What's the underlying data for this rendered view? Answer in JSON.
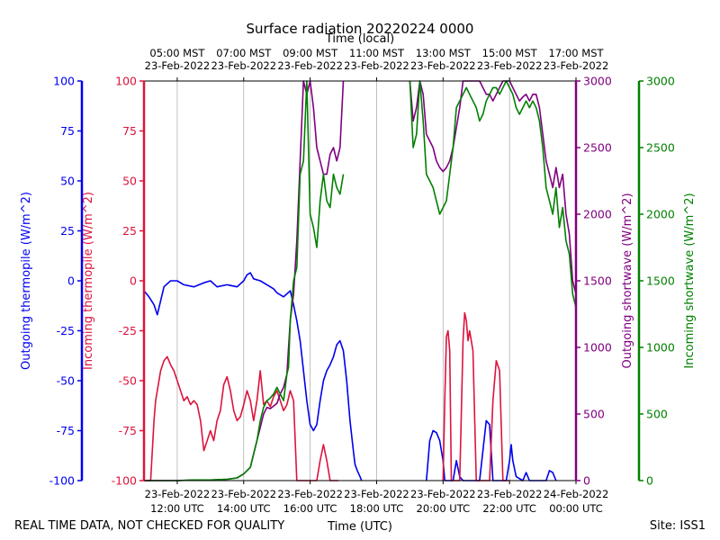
{
  "chart_data": {
    "type": "line",
    "title": "Surface radiation 20220224 0000",
    "xlabel_bottom": "Time (UTC)",
    "xlabel_top": "Time (local)",
    "footer_left": "REAL TIME DATA, NOT CHECKED FOR QUALITY",
    "footer_right": "Site: ISS1",
    "xlim_hours_utc": [
      11,
      24
    ],
    "grid": "vertical",
    "x_ticks_bottom": [
      {
        "hour": 12,
        "date": "23-Feb-2022",
        "time": "12:00 UTC"
      },
      {
        "hour": 14,
        "date": "23-Feb-2022",
        "time": "14:00 UTC"
      },
      {
        "hour": 16,
        "date": "23-Feb-2022",
        "time": "16:00 UTC"
      },
      {
        "hour": 18,
        "date": "23-Feb-2022",
        "time": "18:00 UTC"
      },
      {
        "hour": 20,
        "date": "23-Feb-2022",
        "time": "20:00 UTC"
      },
      {
        "hour": 22,
        "date": "23-Feb-2022",
        "time": "22:00 UTC"
      },
      {
        "hour": 24,
        "date": "24-Feb-2022",
        "time": "00:00 UTC"
      }
    ],
    "x_ticks_top": [
      {
        "hour": 12,
        "time": "05:00 MST",
        "date": "23-Feb-2022"
      },
      {
        "hour": 14,
        "time": "07:00 MST",
        "date": "23-Feb-2022"
      },
      {
        "hour": 16,
        "time": "09:00 MST",
        "date": "23-Feb-2022"
      },
      {
        "hour": 18,
        "time": "11:00 MST",
        "date": "23-Feb-2022"
      },
      {
        "hour": 20,
        "time": "13:00 MST",
        "date": "23-Feb-2022"
      },
      {
        "hour": 22,
        "time": "15:00 MST",
        "date": "23-Feb-2022"
      },
      {
        "hour": 24,
        "time": "17:00 MST",
        "date": "23-Feb-2022"
      }
    ],
    "axes": [
      {
        "id": "out_thermo",
        "label": "Outgoing thermopile (W/m^2)",
        "color": "#0000ee",
        "ylim": [
          -100,
          100
        ],
        "ticks": [
          -100,
          -75,
          -50,
          -25,
          0,
          25,
          50,
          75,
          100
        ]
      },
      {
        "id": "in_thermo",
        "label": "Incoming thermopile (W/m^2)",
        "color": "#dc143c",
        "ylim": [
          -100,
          100
        ],
        "ticks": [
          -100,
          -75,
          -50,
          -25,
          0,
          25,
          50,
          75,
          100
        ]
      },
      {
        "id": "out_sw",
        "label": "Outgoing shortwave (W/m^2)",
        "color": "#800080",
        "ylim": [
          0,
          3000
        ],
        "ticks": [
          0,
          500,
          1000,
          1500,
          2000,
          2500,
          3000
        ]
      },
      {
        "id": "in_sw",
        "label": "Incoming shortwave (W/m^2)",
        "color": "#008000",
        "ylim": [
          0,
          3000
        ],
        "ticks": [
          0,
          500,
          1000,
          1500,
          2000,
          2500,
          3000
        ]
      }
    ],
    "series": [
      {
        "id": "outgoing-thermopile",
        "axis": "out_thermo",
        "color": "#0000ee",
        "x": [
          11.0,
          11.15,
          11.3,
          11.4,
          11.5,
          11.6,
          11.8,
          12.0,
          12.2,
          12.5,
          12.8,
          13.0,
          13.2,
          13.5,
          13.8,
          14.0,
          14.1,
          14.2,
          14.3,
          14.5,
          14.7,
          14.9,
          15.0,
          15.2,
          15.4,
          15.5,
          15.6,
          15.7,
          15.8,
          15.9,
          16.0,
          16.1,
          16.2,
          16.3,
          16.4,
          16.5,
          16.6,
          16.7,
          16.8,
          16.9,
          17.0,
          17.1,
          17.2,
          17.3,
          17.35,
          17.42,
          17.5,
          17.55
        ],
        "y": [
          -5,
          -8,
          -12,
          -17,
          -10,
          -3,
          0,
          0,
          -2,
          -3,
          -1,
          0,
          -3,
          -2,
          -3,
          0,
          3,
          4,
          1,
          0,
          -2,
          -4,
          -6,
          -8,
          -5,
          -12,
          -20,
          -30,
          -45,
          -60,
          -72,
          -75,
          -72,
          -60,
          -50,
          -45,
          -42,
          -38,
          -32,
          -30,
          -35,
          -50,
          -70,
          -85,
          -92,
          -95,
          -98,
          -100
        ]
      },
      {
        "id": "outgoing-thermopile-afternoon",
        "axis": "out_thermo",
        "color": "#0000ee",
        "x": [
          19.5,
          19.6,
          19.7,
          19.8,
          19.9,
          20.0,
          20.05,
          20.3,
          20.4,
          20.5,
          20.6,
          21.1,
          21.2,
          21.3,
          21.4,
          21.5,
          21.7,
          21.9,
          22.0,
          22.05,
          22.1,
          22.2,
          22.4,
          22.5,
          22.6,
          23.1,
          23.2,
          23.3,
          23.4
        ],
        "y": [
          -100,
          -80,
          -75,
          -76,
          -80,
          -90,
          -100,
          -100,
          -90,
          -98,
          -100,
          -100,
          -85,
          -70,
          -72,
          -100,
          -100,
          -100,
          -90,
          -82,
          -90,
          -98,
          -100,
          -96,
          -100,
          -100,
          -95,
          -96,
          -100
        ]
      },
      {
        "id": "incoming-thermopile",
        "axis": "in_thermo",
        "color": "#dc143c",
        "x": [
          11.0,
          11.2,
          11.3,
          11.35,
          11.5,
          11.6,
          11.7,
          11.8,
          11.9,
          12.0,
          12.1,
          12.2,
          12.3,
          12.4,
          12.5,
          12.6,
          12.7,
          12.8,
          12.9,
          13.0,
          13.1,
          13.2,
          13.3,
          13.4,
          13.5,
          13.6,
          13.7,
          13.8,
          13.9,
          14.0,
          14.1,
          14.2,
          14.3,
          14.4,
          14.5,
          14.6,
          14.7,
          14.8,
          14.9,
          15.0,
          15.1,
          15.2,
          15.3,
          15.4,
          15.5,
          15.6,
          15.7,
          15.8,
          15.9,
          16.0,
          16.1,
          16.2,
          16.3,
          16.4,
          16.5,
          16.6,
          16.7,
          16.8,
          16.85
        ],
        "y": [
          -100,
          -100,
          -70,
          -60,
          -45,
          -40,
          -38,
          -42,
          -45,
          -50,
          -55,
          -60,
          -58,
          -62,
          -60,
          -62,
          -70,
          -85,
          -80,
          -75,
          -80,
          -70,
          -65,
          -52,
          -48,
          -55,
          -65,
          -70,
          -68,
          -62,
          -55,
          -60,
          -70,
          -60,
          -45,
          -62,
          -60,
          -63,
          -58,
          -55,
          -60,
          -65,
          -62,
          -55,
          -60,
          -100,
          -100,
          -100,
          -100,
          -100,
          -100,
          -100,
          -90,
          -82,
          -90,
          -100,
          -100,
          -100,
          -100
        ]
      },
      {
        "id": "incoming-thermopile-afternoon",
        "axis": "in_thermo",
        "color": "#dc143c",
        "x": [
          20.0,
          20.05,
          20.1,
          20.15,
          20.2,
          20.25,
          20.3,
          20.4,
          20.5,
          20.6,
          20.65,
          20.7,
          20.75,
          20.8,
          20.9,
          21.0,
          21.1,
          21.2,
          21.3,
          21.4,
          21.5,
          21.6,
          21.7,
          21.8,
          21.9,
          22.0
        ],
        "y": [
          -100,
          -60,
          -28,
          -25,
          -35,
          -100,
          -100,
          -100,
          -100,
          -30,
          -16,
          -20,
          -30,
          -25,
          -35,
          -100,
          -100,
          -100,
          -100,
          -100,
          -60,
          -40,
          -45,
          -100,
          -100,
          -100
        ]
      },
      {
        "id": "outgoing-shortwave",
        "axis": "out_sw",
        "color": "#800080",
        "x": [
          11.0,
          11.5,
          12.0,
          12.5,
          13.0,
          13.5,
          13.8,
          14.0,
          14.2,
          14.3,
          14.4,
          14.5,
          14.6,
          14.7,
          14.8,
          14.9,
          15.0,
          15.1,
          15.2,
          15.3,
          15.35,
          15.4,
          15.5,
          15.6,
          15.7,
          15.8,
          15.9,
          16.0,
          16.1,
          16.2,
          16.3,
          16.4,
          16.5,
          16.6,
          16.7,
          16.8,
          16.9,
          17.0
        ],
        "y": [
          0,
          0,
          0,
          5,
          5,
          10,
          20,
          50,
          100,
          200,
          300,
          400,
          500,
          550,
          540,
          560,
          580,
          650,
          700,
          800,
          1000,
          1200,
          1400,
          1800,
          2400,
          3000,
          2900,
          3000,
          2800,
          2500,
          2400,
          2300,
          2300,
          2450,
          2500,
          2400,
          2500,
          3000
        ]
      },
      {
        "id": "outgoing-shortwave-afternoon",
        "axis": "out_sw",
        "color": "#800080",
        "x": [
          19.0,
          19.1,
          19.2,
          19.3,
          19.4,
          19.5,
          19.6,
          19.7,
          19.8,
          19.9,
          20.0,
          20.1,
          20.2,
          20.3,
          20.4,
          20.5,
          20.6,
          20.7,
          20.8,
          20.9,
          21.0,
          21.1,
          21.2,
          21.3,
          21.4,
          21.5,
          21.6,
          21.7,
          21.8,
          21.9,
          22.0,
          22.1,
          22.2,
          22.3,
          22.4,
          22.5,
          22.6,
          22.7,
          22.8,
          22.9,
          23.0,
          23.1,
          23.2,
          23.3,
          23.4,
          23.5,
          23.6,
          23.7,
          23.8,
          23.9,
          24.0
        ],
        "y": [
          3000,
          2700,
          2800,
          3000,
          2900,
          2600,
          2550,
          2500,
          2400,
          2350,
          2320,
          2350,
          2400,
          2500,
          2650,
          2800,
          3000,
          3000,
          3000,
          3000,
          3000,
          3000,
          2950,
          2900,
          2900,
          2850,
          2900,
          2950,
          3000,
          3000,
          3000,
          2950,
          2900,
          2850,
          2880,
          2900,
          2850,
          2900,
          2900,
          2800,
          2600,
          2400,
          2300,
          2200,
          2350,
          2200,
          2300,
          2000,
          1850,
          1500,
          1400
        ]
      },
      {
        "id": "incoming-shortwave",
        "axis": "in_sw",
        "color": "#008000",
        "x": [
          11.0,
          11.5,
          12.0,
          12.5,
          13.0,
          13.5,
          13.8,
          14.0,
          14.2,
          14.3,
          14.4,
          14.5,
          14.6,
          14.7,
          14.8,
          14.9,
          15.0,
          15.1,
          15.2,
          15.3,
          15.35,
          15.4,
          15.5,
          15.6,
          15.7,
          15.8,
          15.9,
          16.0,
          16.1,
          16.2,
          16.3,
          16.4,
          16.5,
          16.6,
          16.7,
          16.8,
          16.9,
          17.0
        ],
        "y": [
          0,
          0,
          0,
          5,
          5,
          10,
          20,
          50,
          100,
          200,
          300,
          450,
          550,
          600,
          620,
          650,
          700,
          650,
          600,
          800,
          850,
          1200,
          1500,
          1600,
          2300,
          2400,
          3000,
          2000,
          1900,
          1750,
          2100,
          2300,
          2100,
          2050,
          2300,
          2200,
          2150,
          2300
        ]
      },
      {
        "id": "incoming-shortwave-afternoon",
        "axis": "in_sw",
        "color": "#008000",
        "x": [
          19.0,
          19.1,
          19.2,
          19.3,
          19.4,
          19.5,
          19.6,
          19.7,
          19.8,
          19.9,
          20.0,
          20.1,
          20.2,
          20.3,
          20.4,
          20.5,
          20.6,
          20.7,
          20.8,
          20.9,
          21.0,
          21.1,
          21.2,
          21.3,
          21.4,
          21.5,
          21.6,
          21.7,
          21.8,
          21.9,
          22.0,
          22.1,
          22.2,
          22.3,
          22.4,
          22.5,
          22.6,
          22.7,
          22.8,
          22.9,
          23.0,
          23.1,
          23.2,
          23.3,
          23.4,
          23.5,
          23.6,
          23.7,
          23.8,
          23.9,
          24.0
        ],
        "y": [
          3000,
          2500,
          2600,
          3000,
          2700,
          2300,
          2250,
          2200,
          2100,
          2000,
          2050,
          2100,
          2300,
          2500,
          2800,
          2850,
          2900,
          2950,
          2900,
          2850,
          2800,
          2700,
          2750,
          2850,
          2900,
          2950,
          2950,
          2900,
          2950,
          3000,
          2950,
          2900,
          2800,
          2750,
          2800,
          2850,
          2800,
          2850,
          2800,
          2700,
          2500,
          2200,
          2100,
          2000,
          2200,
          1900,
          2050,
          1800,
          1700,
          1400,
          1300
        ]
      }
    ]
  }
}
